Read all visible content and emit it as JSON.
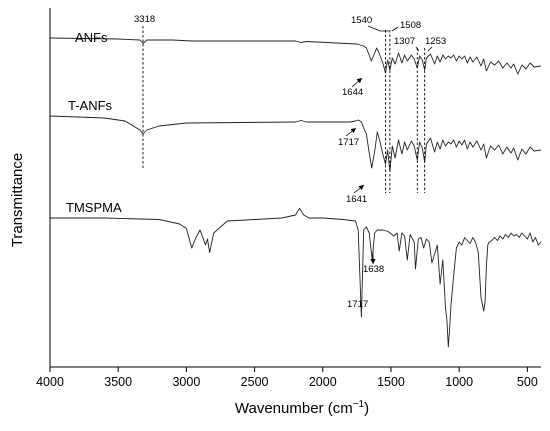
{
  "chart_data": {
    "type": "line",
    "xlabel": "Wavenumber (cm",
    "xlabel_sup": "−1",
    "xlabel_close": ")",
    "ylabel": "Transmittance",
    "xlim": [
      4000,
      400
    ],
    "x_reversed": true,
    "x_ticks": [
      4000,
      3500,
      3000,
      2500,
      2000,
      1500,
      1000,
      500
    ],
    "y_ticks": "none",
    "grid": false,
    "series": [
      {
        "name": "ANFs",
        "x": [
          4000,
          3500,
          3340,
          3318,
          3290,
          3100,
          2960,
          2200,
          2160,
          2120,
          1750,
          1700,
          1680,
          1660,
          1644,
          1625,
          1605,
          1590,
          1560,
          1540,
          1525,
          1508,
          1490,
          1470,
          1445,
          1420,
          1400,
          1380,
          1350,
          1330,
          1307,
          1290,
          1270,
          1253,
          1240,
          1210,
          1180,
          1160,
          1140,
          1120,
          1100,
          1080,
          1060,
          1040,
          1020,
          1000,
          980,
          960,
          940,
          920,
          900,
          870,
          840,
          820,
          800,
          770,
          740,
          710,
          680,
          650,
          620,
          600,
          570,
          540,
          510,
          480,
          450,
          400
        ],
        "y": [
          0.0,
          0.01,
          0.02,
          0.055,
          0.02,
          0.02,
          0.03,
          0.03,
          0.045,
          0.035,
          0.06,
          0.08,
          0.1,
          0.17,
          0.23,
          0.17,
          0.1,
          0.14,
          0.25,
          0.35,
          0.22,
          0.32,
          0.2,
          0.26,
          0.15,
          0.25,
          0.17,
          0.23,
          0.17,
          0.21,
          0.3,
          0.18,
          0.22,
          0.32,
          0.2,
          0.16,
          0.26,
          0.18,
          0.24,
          0.17,
          0.21,
          0.18,
          0.2,
          0.17,
          0.23,
          0.18,
          0.21,
          0.18,
          0.25,
          0.19,
          0.24,
          0.19,
          0.28,
          0.21,
          0.33,
          0.24,
          0.27,
          0.23,
          0.3,
          0.25,
          0.3,
          0.26,
          0.36,
          0.27,
          0.31,
          0.25,
          0.29,
          0.28
        ]
      },
      {
        "name": "T-ANFs",
        "x": [
          4000,
          3600,
          3450,
          3340,
          3318,
          3290,
          3200,
          3000,
          2200,
          2160,
          2120,
          1800,
          1760,
          1740,
          1717,
          1700,
          1680,
          1660,
          1641,
          1620,
          1600,
          1580,
          1560,
          1540,
          1525,
          1508,
          1490,
          1470,
          1445,
          1420,
          1400,
          1380,
          1350,
          1330,
          1307,
          1290,
          1270,
          1253,
          1240,
          1210,
          1180,
          1160,
          1140,
          1120,
          1100,
          1080,
          1060,
          1040,
          1020,
          1000,
          980,
          960,
          940,
          920,
          900,
          870,
          840,
          820,
          800,
          770,
          740,
          710,
          680,
          650,
          620,
          600,
          570,
          540,
          510,
          480,
          450,
          400
        ],
        "y": [
          0.0,
          0.02,
          0.05,
          0.14,
          0.18,
          0.14,
          0.1,
          0.07,
          0.06,
          0.045,
          0.06,
          0.06,
          0.05,
          0.04,
          0.06,
          0.12,
          0.18,
          0.37,
          0.52,
          0.36,
          0.16,
          0.26,
          0.38,
          0.48,
          0.34,
          0.55,
          0.3,
          0.42,
          0.24,
          0.38,
          0.26,
          0.34,
          0.25,
          0.3,
          0.44,
          0.26,
          0.32,
          0.46,
          0.28,
          0.22,
          0.36,
          0.26,
          0.33,
          0.24,
          0.3,
          0.26,
          0.28,
          0.24,
          0.31,
          0.25,
          0.29,
          0.24,
          0.33,
          0.26,
          0.31,
          0.25,
          0.34,
          0.28,
          0.42,
          0.3,
          0.34,
          0.29,
          0.38,
          0.31,
          0.37,
          0.32,
          0.44,
          0.33,
          0.38,
          0.31,
          0.35,
          0.34
        ]
      },
      {
        "name": "TMSPMA",
        "x": [
          4000,
          3600,
          3200,
          3050,
          3000,
          2960,
          2935,
          2900,
          2880,
          2860,
          2845,
          2830,
          2800,
          2700,
          2500,
          2300,
          2200,
          2170,
          2140,
          2100,
          2000,
          1850,
          1760,
          1740,
          1717,
          1700,
          1680,
          1660,
          1638,
          1620,
          1600,
          1560,
          1520,
          1480,
          1455,
          1440,
          1420,
          1400,
          1380,
          1360,
          1330,
          1320,
          1300,
          1280,
          1260,
          1240,
          1220,
          1200,
          1180,
          1160,
          1140,
          1120,
          1100,
          1090,
          1080,
          1070,
          1060,
          1040,
          1020,
          1000,
          980,
          960,
          940,
          920,
          900,
          880,
          860,
          840,
          820,
          810,
          800,
          790,
          780,
          760,
          740,
          720,
          700,
          680,
          660,
          640,
          620,
          600,
          580,
          560,
          540,
          520,
          500,
          480,
          460,
          440,
          420,
          400
        ],
        "y": [
          0.02,
          0.02,
          0.03,
          0.06,
          0.09,
          0.22,
          0.16,
          0.1,
          0.15,
          0.2,
          0.16,
          0.25,
          0.12,
          0.04,
          0.03,
          0.02,
          0.0,
          -0.045,
          0.0,
          0.02,
          0.02,
          0.03,
          0.04,
          0.1,
          0.68,
          0.1,
          0.08,
          0.12,
          0.3,
          0.12,
          0.1,
          0.1,
          0.11,
          0.14,
          0.12,
          0.24,
          0.12,
          0.14,
          0.3,
          0.13,
          0.18,
          0.36,
          0.16,
          0.15,
          0.22,
          0.16,
          0.18,
          0.32,
          0.26,
          0.2,
          0.46,
          0.3,
          0.62,
          0.7,
          0.88,
          0.76,
          0.6,
          0.4,
          0.22,
          0.18,
          0.2,
          0.15,
          0.17,
          0.19,
          0.15,
          0.18,
          0.25,
          0.55,
          0.64,
          0.58,
          0.34,
          0.2,
          0.18,
          0.17,
          0.15,
          0.17,
          0.14,
          0.16,
          0.13,
          0.15,
          0.12,
          0.14,
          0.13,
          0.15,
          0.12,
          0.14,
          0.16,
          0.12,
          0.18,
          0.15,
          0.2,
          0.18
        ]
      }
    ],
    "annotations": [
      {
        "label": "3318",
        "x": 3318
      },
      {
        "label": "1540",
        "x": 1540
      },
      {
        "label": "1508",
        "x": 1508
      },
      {
        "label": "1307",
        "x": 1307
      },
      {
        "label": "1253",
        "x": 1253
      },
      {
        "label": "1644",
        "x": 1644
      },
      {
        "label": "1717",
        "x": 1717
      },
      {
        "label": "1641",
        "x": 1641
      },
      {
        "label": "1638",
        "x": 1638
      },
      {
        "label": "1717",
        "x": 1717
      }
    ]
  }
}
